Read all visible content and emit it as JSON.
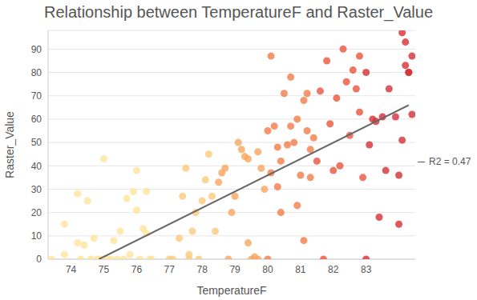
{
  "chart_data": {
    "type": "scatter",
    "title": "Relationship between TemperatureF and Raster_Value",
    "x_label": "TemperatureF",
    "y_label": "Raster_Value",
    "xlim": [
      73.3,
      84.5
    ],
    "xticks": [
      74,
      75,
      76,
      77,
      78,
      79,
      80,
      81,
      82,
      83
    ],
    "ylim": [
      0,
      98
    ],
    "yticks": [
      0,
      10,
      20,
      30,
      40,
      50,
      60,
      70,
      80,
      90
    ],
    "grid": true,
    "annotations": [
      "R2 = 0.47"
    ],
    "series": [
      {
        "type": "scatter",
        "marker": "circle",
        "x": [
          73.4,
          73.8,
          73.8,
          74.2,
          74.2,
          74.3,
          74.4,
          74.5,
          74.6,
          74.7,
          74.8,
          74.9,
          75.0,
          75.1,
          75.2,
          75.3,
          75.4,
          75.5,
          75.6,
          75.7,
          75.8,
          75.9,
          76.0,
          76.0,
          76.1,
          76.2,
          76.3,
          76.3,
          76.4,
          76.45,
          77.0,
          77.1,
          77.3,
          77.4,
          77.5,
          77.6,
          77.6,
          77.7,
          77.8,
          77.9,
          78.0,
          78.1,
          78.2,
          78.3,
          78.4,
          78.5,
          78.6,
          78.7,
          78.8,
          78.9,
          79.0,
          79.1,
          79.2,
          79.3,
          79.4,
          79.4,
          79.5,
          79.6,
          79.7,
          79.8,
          79.9,
          79.7,
          80.0,
          80.0,
          80.1,
          80.1,
          80.2,
          80.3,
          80.3,
          80.4,
          80.4,
          80.5,
          80.6,
          80.7,
          80.7,
          80.8,
          80.9,
          80.9,
          81.0,
          81.1,
          81.1,
          81.2,
          81.2,
          81.3,
          81.3,
          81.4,
          81.5,
          81.6,
          81.7,
          81.8,
          81.9,
          82.0,
          82.1,
          82.2,
          82.3,
          82.4,
          82.5,
          82.6,
          82.7,
          82.8,
          82.8,
          82.9,
          83.0,
          83.0,
          83.1,
          83.2,
          83.3,
          83.4,
          83.5,
          83.6,
          83.7,
          83.9,
          84.0,
          84.0,
          84.1,
          84.1,
          84.2,
          84.2,
          84.3,
          84.3,
          84.4,
          84.4
        ],
        "values": [
          0,
          2,
          15,
          28,
          7,
          0,
          6,
          25,
          0,
          9,
          0,
          0,
          43,
          0,
          0,
          8,
          0,
          12,
          0,
          26,
          2,
          29,
          38,
          21,
          0,
          13,
          11,
          29,
          0,
          0,
          0,
          0,
          9,
          27,
          39,
          2,
          0,
          12,
          20,
          0,
          25,
          34,
          45,
          27,
          12,
          33,
          37,
          39,
          0,
          20,
          27,
          50,
          47,
          44,
          43,
          7,
          0,
          1,
          46,
          39,
          30,
          0,
          55,
          0,
          87,
          37,
          57,
          31,
          48,
          42,
          20,
          71,
          49,
          78,
          57,
          50,
          60,
          23,
          36,
          68,
          8,
          71,
          55,
          35,
          47,
          52,
          42,
          72,
          0,
          85,
          58,
          38,
          69,
          40,
          90,
          76,
          53,
          81,
          73,
          63,
          87,
          35,
          80,
          0,
          49,
          60,
          59,
          18,
          61,
          38,
          73,
          61,
          36,
          15,
          97,
          51,
          93,
          83,
          80,
          80,
          87,
          62
        ],
        "colors": [
          "#fee49a",
          "#fee49a",
          "#fee49a",
          "#fee49a",
          "#fee49a",
          "#fee49a",
          "#fee49a",
          "#fee49a",
          "#fee49a",
          "#fee49a",
          "#fee49a",
          "#fee49a",
          "#fee49a",
          "#fee49a",
          "#fee49a",
          "#fee49a",
          "#fee49a",
          "#fee49a",
          "#fee49a",
          "#fee49a",
          "#fee49a",
          "#fee49a",
          "#fee49a",
          "#fee49a",
          "#fee49a",
          "#fee49a",
          "#fee49a",
          "#fee49a",
          "#fee49a",
          "#fee49a",
          "#fdc97e",
          "#fdc97e",
          "#fdc97e",
          "#fdc97e",
          "#fdc97e",
          "#fdc97e",
          "#fdc97e",
          "#fdc97e",
          "#fdc97e",
          "#fdc97e",
          "#fdc97e",
          "#fdc97e",
          "#fdc97e",
          "#fdc97e",
          "#fdc97e",
          "#f9a55e",
          "#f9a55e",
          "#f9a55e",
          "#f9a55e",
          "#f9a55e",
          "#f9a55e",
          "#f9a55e",
          "#f9a55e",
          "#f9a55e",
          "#f9a55e",
          "#f9a55e",
          "#f9a55e",
          "#f9a55e",
          "#f9a55e",
          "#f9a55e",
          "#f9a55e",
          "#f9a55e",
          "#f27c48",
          "#f27c48",
          "#f27c48",
          "#f27c48",
          "#f27c48",
          "#f27c48",
          "#f27c48",
          "#f27c48",
          "#f27c48",
          "#f27c48",
          "#f27c48",
          "#f27c48",
          "#f27c48",
          "#f27c48",
          "#f27c48",
          "#f27c48",
          "#f27c48",
          "#f27c48",
          "#f27c48",
          "#f27c48",
          "#f27c48",
          "#f27c48",
          "#f27c48",
          "#f27c48",
          "#e8553c",
          "#e8553c",
          "#e8553c",
          "#e8553c",
          "#e8553c",
          "#e8553c",
          "#e8553c",
          "#e8553c",
          "#e8553c",
          "#e8553c",
          "#e8553c",
          "#e8553c",
          "#e8553c",
          "#e8553c",
          "#e8553c",
          "#e8553c",
          "#d62f35",
          "#d62f35",
          "#d62f35",
          "#d62f35",
          "#d62f35",
          "#d62f35",
          "#d62f35",
          "#d62f35",
          "#d62f35",
          "#d62f35",
          "#d62f35",
          "#d62f35",
          "#d62f35",
          "#d62f35",
          "#d62f35",
          "#d62f35",
          "#d62f35",
          "#d62f35",
          "#d62f35",
          "#d62f35"
        ]
      },
      {
        "type": "line",
        "x": [
          74.85,
          84.3
        ],
        "values": [
          0,
          66
        ],
        "color": "#666666"
      }
    ]
  }
}
